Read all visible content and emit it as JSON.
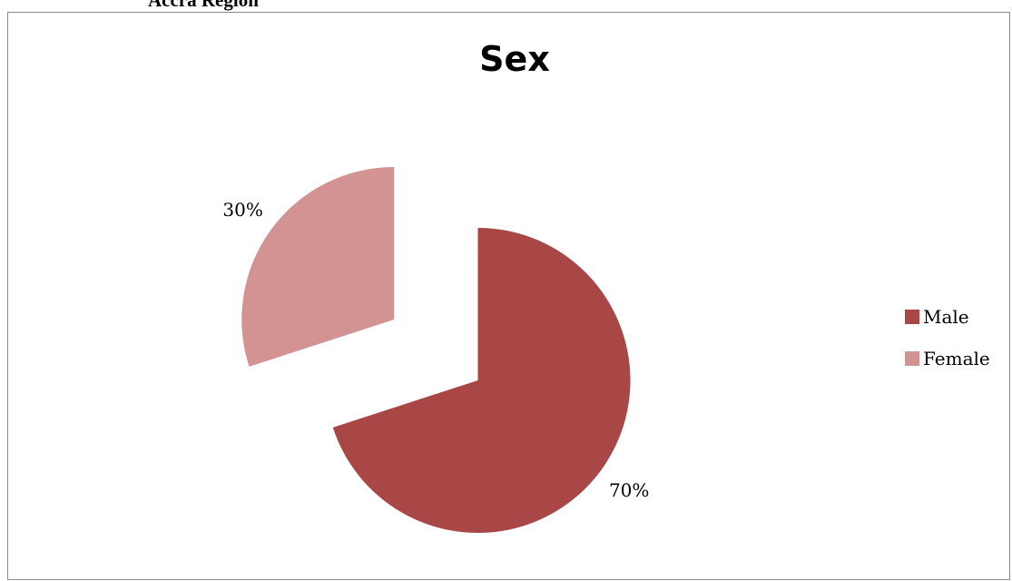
{
  "document": {
    "heading": "Accra Region"
  },
  "chart_data": {
    "type": "pie",
    "title": "Sex",
    "categories": [
      "Male",
      "Female"
    ],
    "values": [
      70,
      30
    ],
    "value_labels": [
      "70%",
      "30%"
    ],
    "colors": [
      "#a84745",
      "#d29392"
    ],
    "exploded": true,
    "legend_position": "right",
    "legend": [
      "Male",
      "Female"
    ]
  }
}
